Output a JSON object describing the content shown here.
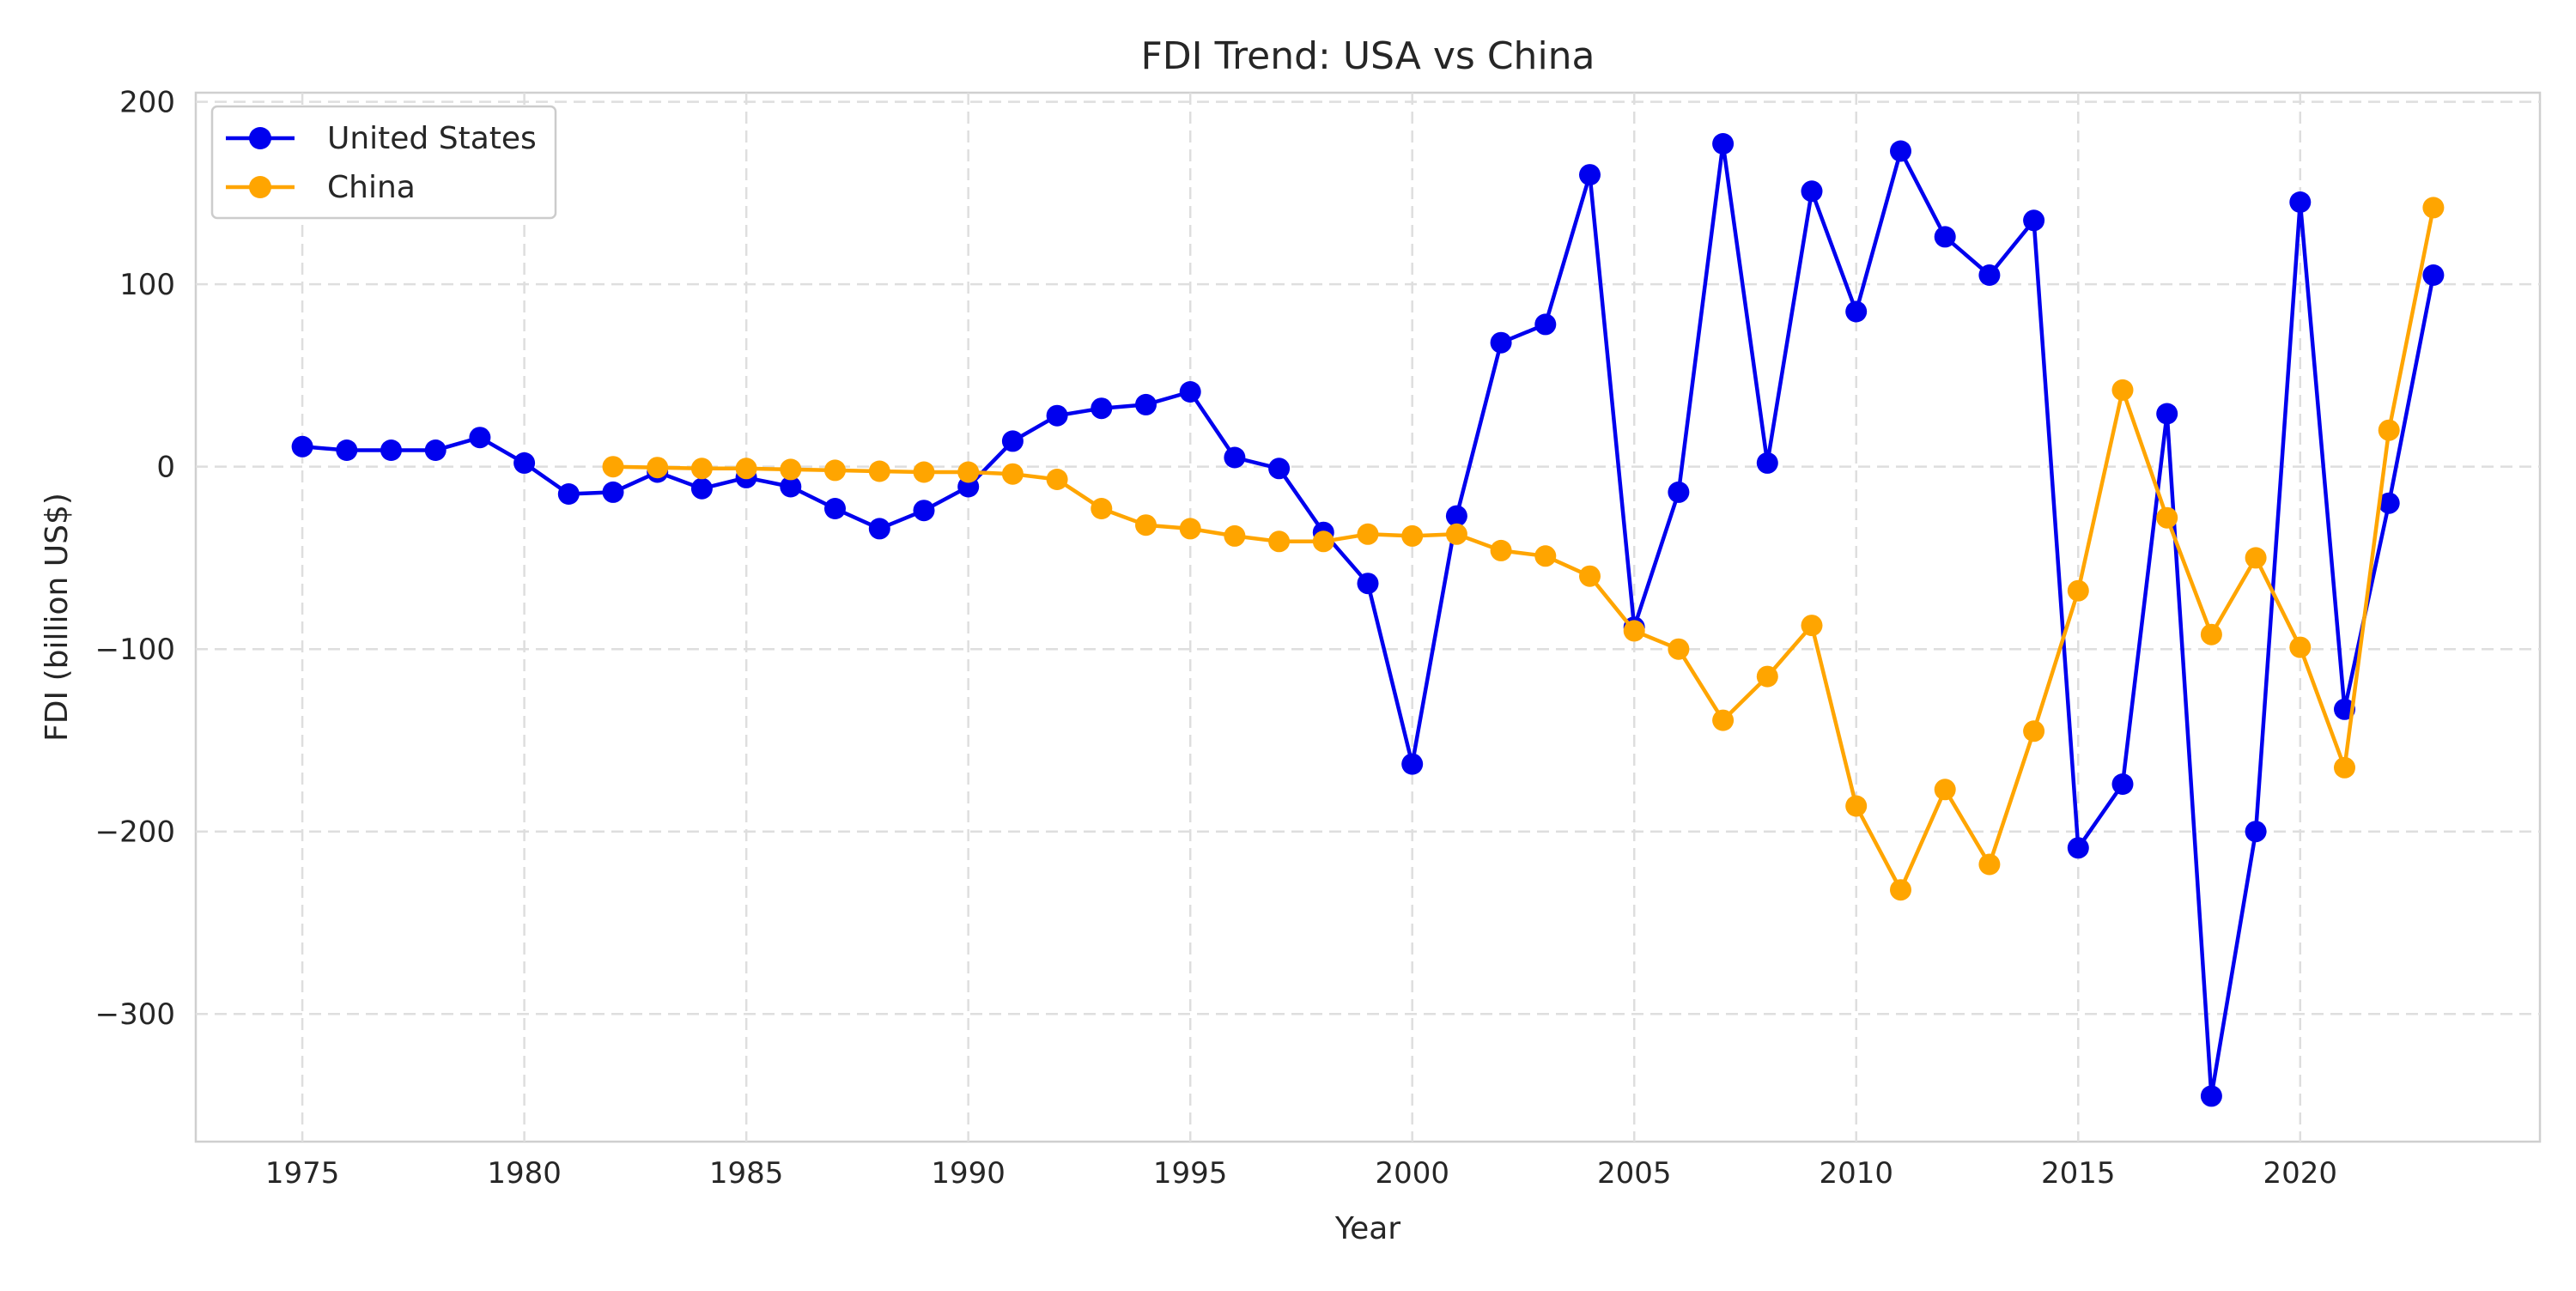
{
  "chart_data": {
    "type": "line",
    "title": "FDI Trend: USA vs China",
    "xlabel": "Year",
    "ylabel": "FDI (billion US$)",
    "xlim": [
      1972.6,
      2025.4
    ],
    "ylim": [
      -370,
      205
    ],
    "xticks": [
      1975,
      1980,
      1985,
      1990,
      1995,
      2000,
      2005,
      2010,
      2015,
      2020
    ],
    "xtick_labels": [
      "1975",
      "1980",
      "1985",
      "1990",
      "1995",
      "2000",
      "2005",
      "2010",
      "2015",
      "2020"
    ],
    "yticks": [
      200,
      100,
      0,
      -100,
      -200,
      -300
    ],
    "ytick_labels": [
      "200",
      "100",
      "0",
      "−100",
      "−200",
      "−300"
    ],
    "grid": true,
    "legend_position": "top-left",
    "marker": "circle",
    "series": [
      {
        "name": "United States",
        "color": "#0000ee",
        "x": [
          1975,
          1976,
          1977,
          1978,
          1979,
          1980,
          1981,
          1982,
          1983,
          1984,
          1985,
          1986,
          1987,
          1988,
          1989,
          1990,
          1991,
          1992,
          1993,
          1994,
          1995,
          1996,
          1997,
          1998,
          1999,
          2000,
          2001,
          2002,
          2003,
          2004,
          2005,
          2006,
          2007,
          2008,
          2009,
          2010,
          2011,
          2012,
          2013,
          2014,
          2015,
          2016,
          2017,
          2018,
          2019,
          2020,
          2021,
          2022,
          2023
        ],
        "values": [
          11,
          9,
          9,
          9,
          16,
          2,
          -15,
          -14,
          -3,
          -12,
          -6,
          -11,
          -23,
          -34,
          -24,
          -11,
          14,
          28,
          32,
          34,
          41,
          5,
          -1,
          -36,
          -64,
          -163,
          -27,
          68,
          78,
          160,
          -88,
          -14,
          177,
          2,
          151,
          85,
          173,
          126,
          105,
          135,
          -209,
          -174,
          29,
          -345,
          -200,
          145,
          -133,
          -20,
          105
        ]
      },
      {
        "name": "China",
        "color": "#ffa500",
        "x": [
          1982,
          1983,
          1984,
          1985,
          1986,
          1987,
          1988,
          1989,
          1990,
          1991,
          1992,
          1993,
          1994,
          1995,
          1996,
          1997,
          1998,
          1999,
          2000,
          2001,
          2002,
          2003,
          2004,
          2005,
          2006,
          2007,
          2008,
          2009,
          2010,
          2011,
          2012,
          2013,
          2014,
          2015,
          2016,
          2017,
          2018,
          2019,
          2020,
          2021,
          2022,
          2023
        ],
        "values": [
          0,
          -0.5,
          -1,
          -1,
          -1.5,
          -2,
          -2.5,
          -3,
          -3,
          -4,
          -7,
          -23,
          -32,
          -34,
          -38,
          -41,
          -41,
          -37,
          -38,
          -37,
          -46,
          -49,
          -60,
          -90,
          -100,
          -139,
          -115,
          -87,
          -186,
          -232,
          -177,
          -218,
          -145,
          -68,
          42,
          -28,
          -92,
          -50,
          -99,
          -165,
          20,
          142
        ]
      }
    ]
  }
}
